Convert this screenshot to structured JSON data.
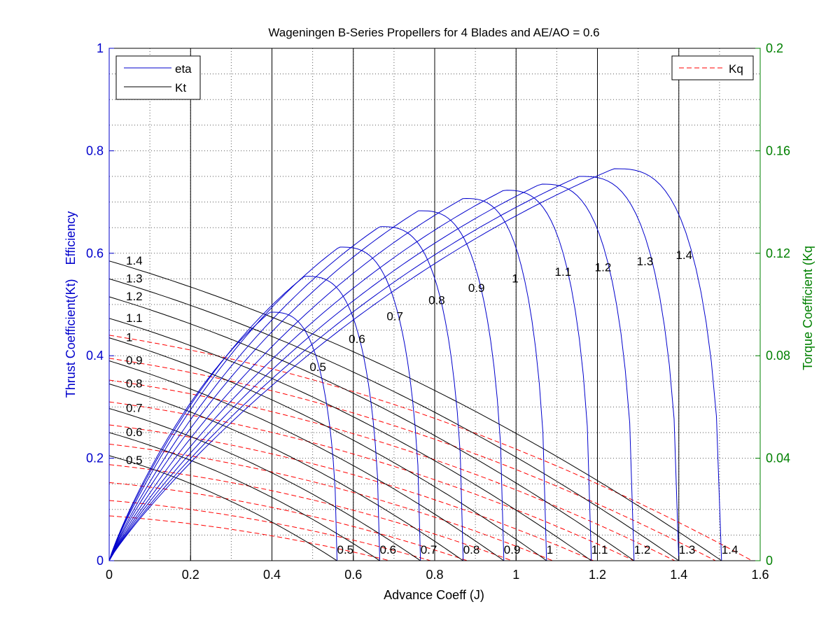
{
  "chart_data": {
    "type": "line",
    "title": "Wageningen B-Series Propellers for 4 Blades and AE/AO = 0.6",
    "xlabel": "Advance Coeff (J)",
    "ylabel_left": "Thrust Coefficient(Kt)    Efficiency",
    "ylabel_right": "Torque Coefficient (Kq",
    "xlim": [
      0,
      1.6
    ],
    "ylim_left": [
      0,
      1
    ],
    "ylim_right": [
      0,
      0.2
    ],
    "x_ticks": [
      "0",
      "0.2",
      "0.4",
      "0.6",
      "0.8",
      "1",
      "1.2",
      "1.4",
      "1.6"
    ],
    "y_left_ticks": [
      "0",
      "0.2",
      "0.4",
      "0.6",
      "0.8",
      "1"
    ],
    "y_right_ticks": [
      "0",
      "0.04",
      "0.08",
      "0.12",
      "0.16",
      "0.2"
    ],
    "grid": true,
    "legend_left": {
      "placement": "top-left",
      "entries": [
        {
          "label": "eta",
          "color": "#0000cc",
          "dash": "solid"
        },
        {
          "label": "Kt",
          "color": "#000000",
          "dash": "solid"
        }
      ]
    },
    "legend_right": {
      "placement": "top-right",
      "entries": [
        {
          "label": "Kq",
          "color": "#ff0000",
          "dash": "dashed"
        }
      ]
    },
    "colors": {
      "eta": "#0000cc",
      "kt": "#000000",
      "kq": "#ff0000",
      "left_axis": "#0000cc",
      "right_axis": "#008000"
    },
    "series": [
      {
        "pd": "0.5",
        "kt": {
          "j0": 0.205,
          "j_zero": 0.56
        },
        "kq": {
          "k0": 0.0175,
          "j_end": 0.69
        },
        "eta": {
          "j_peak": 0.395,
          "eta_peak": 0.485,
          "j_end": 0.56
        }
      },
      {
        "pd": "0.6",
        "kt": {
          "j0": 0.25,
          "j_zero": 0.665
        },
        "kq": {
          "k0": 0.0235,
          "j_end": 0.79
        },
        "eta": {
          "j_peak": 0.48,
          "eta_peak": 0.555,
          "j_end": 0.665
        }
      },
      {
        "pd": "0.7",
        "kt": {
          "j0": 0.297,
          "j_zero": 0.765
        },
        "kq": {
          "k0": 0.0305,
          "j_end": 0.88
        },
        "eta": {
          "j_peak": 0.565,
          "eta_peak": 0.612,
          "j_end": 0.765
        }
      },
      {
        "pd": "0.8",
        "kt": {
          "j0": 0.345,
          "j_zero": 0.87
        },
        "kq": {
          "k0": 0.0375,
          "j_end": 0.99
        },
        "eta": {
          "j_peak": 0.665,
          "eta_peak": 0.652,
          "j_end": 0.87
        }
      },
      {
        "pd": "0.9",
        "kt": {
          "j0": 0.39,
          "j_zero": 0.97
        },
        "kq": {
          "k0": 0.0455,
          "j_end": 1.09
        },
        "eta": {
          "j_peak": 0.76,
          "eta_peak": 0.683,
          "j_end": 0.97
        }
      },
      {
        "pd": "1",
        "kt": {
          "j0": 0.435,
          "j_zero": 1.075
        },
        "kq": {
          "k0": 0.053,
          "j_end": 1.19
        },
        "eta": {
          "j_peak": 0.87,
          "eta_peak": 0.707,
          "j_end": 1.075
        }
      },
      {
        "pd": "1.1",
        "kt": {
          "j0": 0.473,
          "j_zero": 1.185
        },
        "kq": {
          "k0": 0.062,
          "j_end": 1.29
        },
        "eta": {
          "j_peak": 0.97,
          "eta_peak": 0.723,
          "j_end": 1.185
        }
      },
      {
        "pd": "1.2",
        "kt": {
          "j0": 0.515,
          "j_zero": 1.29
        },
        "kq": {
          "k0": 0.0705,
          "j_end": 1.39
        },
        "eta": {
          "j_peak": 1.06,
          "eta_peak": 0.735,
          "j_end": 1.29
        }
      },
      {
        "pd": "1.3",
        "kt": {
          "j0": 0.55,
          "j_zero": 1.4
        },
        "kq": {
          "k0": 0.079,
          "j_end": 1.49
        },
        "eta": {
          "j_peak": 1.155,
          "eta_peak": 0.75,
          "j_end": 1.4
        }
      },
      {
        "pd": "1.4",
        "kt": {
          "j0": 0.585,
          "j_zero": 1.505
        },
        "kq": {
          "k0": 0.088,
          "j_end": 1.58
        },
        "eta": {
          "j_peak": 1.24,
          "eta_peak": 0.765,
          "j_end": 1.505
        }
      }
    ],
    "vertical_lines_j": [
      0.2,
      0.4,
      0.6,
      0.8,
      1.0,
      1.2,
      1.4
    ]
  }
}
